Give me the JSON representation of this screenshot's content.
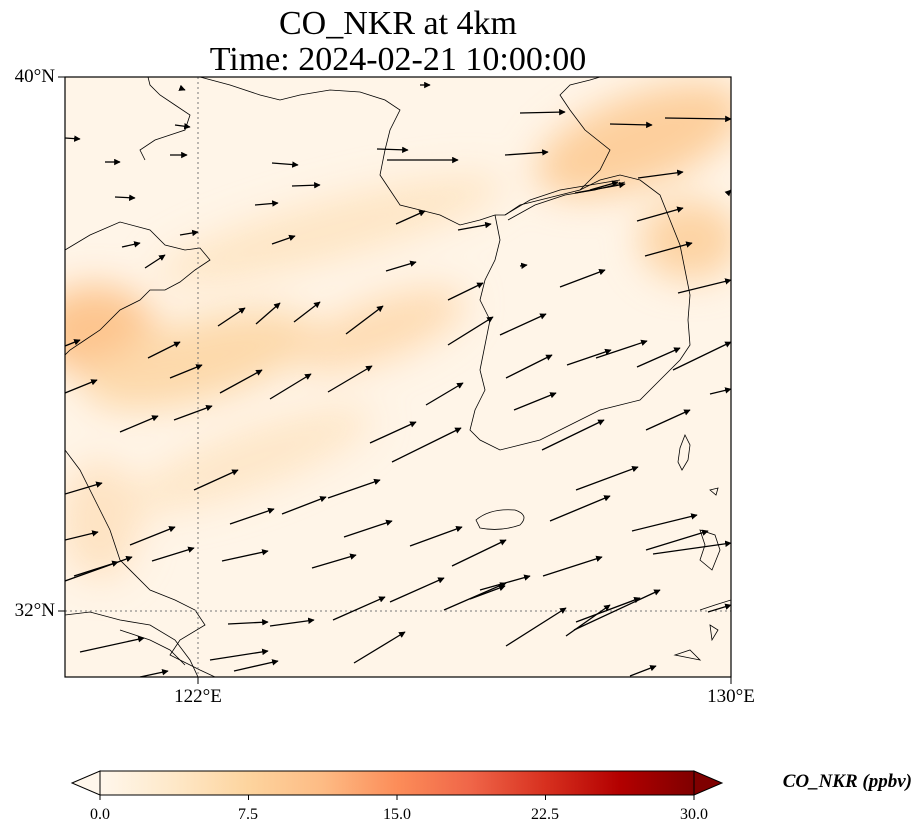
{
  "title": {
    "line1": "CO_NKR at 4km",
    "line2": "Time: 2024-02-21 10:00:00"
  },
  "map": {
    "lat_labels": [
      "40°N",
      "32°N"
    ],
    "lon_labels": [
      "122°E",
      "130°E"
    ],
    "extent": {
      "lon_min": 120,
      "lon_max": 130,
      "lat_min": 31,
      "lat_max": 40
    },
    "gridlines": {
      "lons": [
        122
      ],
      "lats": [
        32
      ]
    },
    "features": [
      "coastlines",
      "wind-vectors",
      "filled-concentration"
    ]
  },
  "colorbar": {
    "label": "CO_NKR (ppbv)",
    "ticks": [
      "0.0",
      "7.5",
      "15.0",
      "22.5",
      "30.0"
    ],
    "min": 0,
    "max": 30,
    "extend": "both",
    "colormap": "OrRd",
    "colors": [
      "#fff7ec",
      "#fee8c8",
      "#fdd49e",
      "#fdbb84",
      "#fc8d59",
      "#ef6548",
      "#d7301f",
      "#b30000",
      "#7f0000"
    ]
  }
}
